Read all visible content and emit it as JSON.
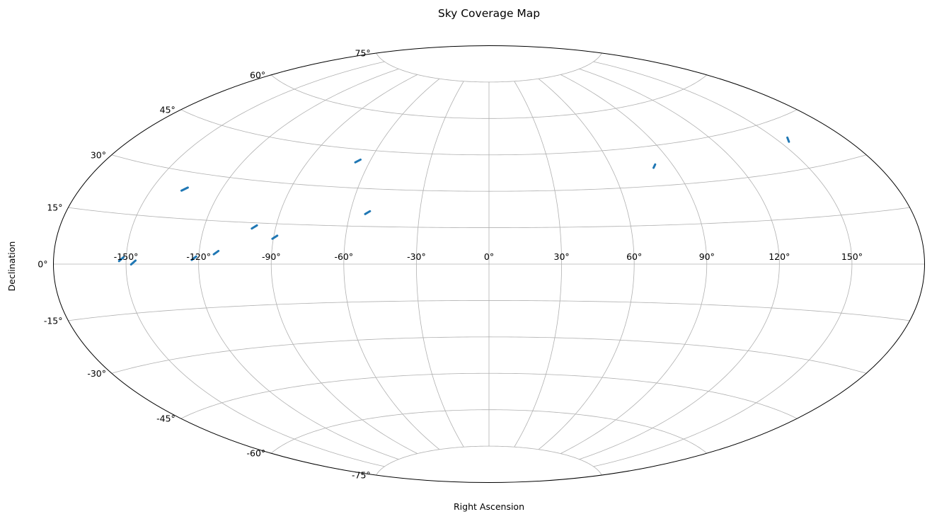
{
  "chart_data": {
    "type": "scatter",
    "projection": "aitoff",
    "title": "Sky Coverage Map",
    "xlabel": "Right Ascension",
    "ylabel": "Declination",
    "grid": true,
    "x_ticks": [
      -150,
      -120,
      -90,
      -60,
      -30,
      0,
      30,
      60,
      90,
      120,
      150
    ],
    "x_tick_labels": [
      "-150°",
      "-120°",
      "-90°",
      "-60°",
      "-30°",
      "0°",
      "30°",
      "60°",
      "90°",
      "120°",
      "150°"
    ],
    "y_ticks": [
      -75,
      -60,
      -45,
      -30,
      -15,
      0,
      15,
      30,
      45,
      60,
      75
    ],
    "y_tick_labels": [
      "-75°",
      "-60°",
      "-45°",
      "-30°",
      "-15°",
      "0°",
      "15°",
      "30°",
      "45°",
      "60°",
      "75°"
    ],
    "xlim": [
      -180,
      180
    ],
    "ylim": [
      -90,
      90
    ],
    "marker_color": "#1f77b4",
    "series": [
      {
        "points": [
          {
            "ra": -152,
            "dec": 1.5
          },
          {
            "ra": -147,
            "dec": 0.5
          },
          {
            "ra": -122,
            "dec": 2
          },
          {
            "ra": -113,
            "dec": 4
          },
          {
            "ra": -99,
            "dec": 13.5
          },
          {
            "ra": -89.5,
            "dec": 10
          },
          {
            "ra": -136,
            "dec": 24.5
          },
          {
            "ra": -52.5,
            "dec": 20.5
          },
          {
            "ra": -66,
            "dec": 40.5
          },
          {
            "ra": 81,
            "dec": 37.5
          },
          {
            "ra": 155,
            "dec": 39
          }
        ]
      }
    ]
  }
}
